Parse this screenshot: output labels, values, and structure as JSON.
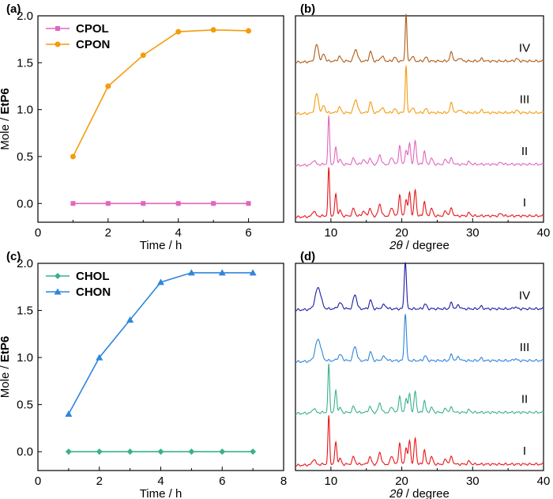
{
  "chart_data": [
    {
      "type": "line",
      "panel_label": "(a)",
      "xlabel": "Time / h",
      "ylabel_plain": "Mole / ",
      "ylabel_bold": "EtP6",
      "xlim": [
        0,
        7
      ],
      "ylim": [
        -0.2,
        2.0
      ],
      "xticks": [
        0,
        2,
        4,
        6
      ],
      "yticks": [
        0.0,
        0.5,
        1.0,
        1.5,
        2.0
      ],
      "ytick_labels": [
        "0.0",
        "0.5",
        "1.0",
        "1.5",
        "2.0"
      ],
      "legend_position": "top-left",
      "series": [
        {
          "name": "CPOL",
          "color": "#e066c0",
          "marker": "square",
          "x": [
            1,
            2,
            3,
            4,
            5,
            6
          ],
          "values": [
            0,
            0,
            0,
            0,
            0,
            0
          ]
        },
        {
          "name": "CPON",
          "color": "#f59b0c",
          "marker": "circle",
          "x": [
            1,
            2,
            3,
            4,
            5,
            6
          ],
          "values": [
            0.5,
            1.25,
            1.58,
            1.83,
            1.85,
            1.84
          ]
        }
      ]
    },
    {
      "type": "line",
      "panel_label": "(b)",
      "xlabel_italic": "2θ",
      "xlabel_rest": " / degree",
      "xlim": [
        5,
        40
      ],
      "xticks": [
        10,
        20,
        30,
        40
      ],
      "traces": [
        {
          "label": "IV",
          "color": "#b05a12",
          "peaks": [
            [
              8.0,
              0.35,
              0.25
            ],
            [
              9.0,
              0.15,
              0.2
            ],
            [
              11.2,
              0.1,
              0.2
            ],
            [
              13.5,
              0.25,
              0.25
            ],
            [
              15.6,
              0.2,
              0.2
            ],
            [
              17.2,
              0.1,
              0.25
            ],
            [
              19.0,
              0.08,
              0.2
            ],
            [
              20.6,
              1.0,
              0.12
            ],
            [
              21.5,
              0.1,
              0.2
            ],
            [
              23.4,
              0.08,
              0.2
            ],
            [
              27.0,
              0.18,
              0.2
            ],
            [
              28.2,
              0.07,
              0.2
            ],
            [
              31.3,
              0.05,
              0.2
            ],
            [
              36.2,
              0.05,
              0.2
            ]
          ]
        },
        {
          "label": "III",
          "color": "#f59b0c",
          "peaks": [
            [
              8.0,
              0.4,
              0.25
            ],
            [
              9.0,
              0.15,
              0.2
            ],
            [
              11.2,
              0.12,
              0.2
            ],
            [
              13.5,
              0.28,
              0.25
            ],
            [
              15.6,
              0.22,
              0.2
            ],
            [
              17.2,
              0.1,
              0.25
            ],
            [
              19.0,
              0.08,
              0.2
            ],
            [
              20.6,
              1.0,
              0.12
            ],
            [
              21.5,
              0.1,
              0.2
            ],
            [
              23.4,
              0.08,
              0.2
            ],
            [
              27.0,
              0.2,
              0.2
            ],
            [
              28.2,
              0.07,
              0.2
            ],
            [
              31.3,
              0.05,
              0.2
            ],
            [
              36.2,
              0.05,
              0.2
            ]
          ]
        },
        {
          "label": "II",
          "color": "#e066c0",
          "peaks": [
            [
              7.6,
              0.1,
              0.2
            ],
            [
              9.7,
              1.0,
              0.12
            ],
            [
              10.7,
              0.35,
              0.15
            ],
            [
              11.3,
              0.1,
              0.15
            ],
            [
              13.2,
              0.12,
              0.2
            ],
            [
              14.6,
              0.1,
              0.2
            ],
            [
              15.5,
              0.12,
              0.2
            ],
            [
              16.9,
              0.2,
              0.2
            ],
            [
              18.6,
              0.15,
              0.2
            ],
            [
              19.7,
              0.4,
              0.15
            ],
            [
              20.6,
              0.3,
              0.15
            ],
            [
              21.1,
              0.45,
              0.15
            ],
            [
              21.9,
              0.5,
              0.15
            ],
            [
              23.2,
              0.28,
              0.15
            ],
            [
              24.2,
              0.12,
              0.2
            ],
            [
              26.2,
              0.1,
              0.2
            ],
            [
              27.0,
              0.12,
              0.2
            ],
            [
              29.5,
              0.05,
              0.2
            ],
            [
              34.0,
              0.04,
              0.2
            ]
          ]
        },
        {
          "label": "I",
          "color": "#e8151a",
          "peaks": [
            [
              7.6,
              0.12,
              0.2
            ],
            [
              9.7,
              1.0,
              0.12
            ],
            [
              10.7,
              0.45,
              0.15
            ],
            [
              11.3,
              0.12,
              0.15
            ],
            [
              13.2,
              0.15,
              0.2
            ],
            [
              14.6,
              0.1,
              0.2
            ],
            [
              15.5,
              0.15,
              0.2
            ],
            [
              16.9,
              0.25,
              0.2
            ],
            [
              18.6,
              0.18,
              0.2
            ],
            [
              19.7,
              0.45,
              0.15
            ],
            [
              20.6,
              0.35,
              0.15
            ],
            [
              21.1,
              0.5,
              0.15
            ],
            [
              21.9,
              0.55,
              0.15
            ],
            [
              23.2,
              0.3,
              0.15
            ],
            [
              24.2,
              0.15,
              0.2
            ],
            [
              26.2,
              0.1,
              0.2
            ],
            [
              27.0,
              0.15,
              0.2
            ],
            [
              29.5,
              0.06,
              0.2
            ],
            [
              34.0,
              0.05,
              0.2
            ]
          ]
        }
      ]
    },
    {
      "type": "line",
      "panel_label": "(c)",
      "xlabel": "Time / h",
      "ylabel_plain": "Mole / ",
      "ylabel_bold": "EtP6",
      "xlim": [
        0,
        8
      ],
      "ylim": [
        -0.2,
        2.0
      ],
      "xticks": [
        0,
        2,
        4,
        6,
        8
      ],
      "yticks": [
        0.0,
        0.5,
        1.0,
        1.5,
        2.0
      ],
      "ytick_labels": [
        "0.0",
        "0.5",
        "1.0",
        "1.5",
        "2.0"
      ],
      "legend_position": "top-left",
      "series": [
        {
          "name": "CHOL",
          "color": "#3bb08f",
          "marker": "diamond",
          "x": [
            1,
            2,
            3,
            4,
            5,
            6,
            7
          ],
          "values": [
            0,
            0,
            0,
            0,
            0,
            0,
            0
          ]
        },
        {
          "name": "CHON",
          "color": "#2f86dd",
          "marker": "triangle",
          "x": [
            1,
            2,
            3,
            4,
            5,
            6,
            7
          ],
          "values": [
            0.4,
            1.0,
            1.4,
            1.8,
            1.9,
            1.9,
            1.9
          ]
        }
      ]
    },
    {
      "type": "line",
      "panel_label": "(d)",
      "xlabel_italic": "2θ",
      "xlabel_rest": " / degree",
      "xlim": [
        5,
        40
      ],
      "xticks": [
        10,
        20,
        30,
        40
      ],
      "traces": [
        {
          "label": "IV",
          "color": "#1c1ca6",
          "peaks": [
            [
              8.2,
              0.45,
              0.4
            ],
            [
              11.3,
              0.12,
              0.3
            ],
            [
              13.4,
              0.3,
              0.25
            ],
            [
              15.6,
              0.18,
              0.2
            ],
            [
              17.5,
              0.08,
              0.3
            ],
            [
              20.5,
              1.0,
              0.15
            ],
            [
              23.3,
              0.1,
              0.2
            ],
            [
              27.0,
              0.12,
              0.2
            ],
            [
              28.0,
              0.08,
              0.2
            ],
            [
              31.2,
              0.05,
              0.2
            ],
            [
              36.0,
              0.04,
              0.2
            ]
          ]
        },
        {
          "label": "III",
          "color": "#2f86dd",
          "peaks": [
            [
              8.2,
              0.45,
              0.4
            ],
            [
              11.3,
              0.12,
              0.3
            ],
            [
              13.4,
              0.3,
              0.25
            ],
            [
              15.6,
              0.18,
              0.2
            ],
            [
              17.5,
              0.08,
              0.3
            ],
            [
              20.5,
              1.0,
              0.15
            ],
            [
              23.3,
              0.1,
              0.2
            ],
            [
              27.0,
              0.12,
              0.2
            ],
            [
              28.0,
              0.08,
              0.2
            ],
            [
              31.2,
              0.05,
              0.2
            ],
            [
              36.0,
              0.04,
              0.2
            ]
          ]
        },
        {
          "label": "II",
          "color": "#3bb08f",
          "peaks": [
            [
              7.6,
              0.1,
              0.2
            ],
            [
              9.7,
              1.0,
              0.12
            ],
            [
              10.7,
              0.45,
              0.15
            ],
            [
              11.3,
              0.1,
              0.15
            ],
            [
              13.2,
              0.12,
              0.2
            ],
            [
              15.5,
              0.12,
              0.2
            ],
            [
              16.9,
              0.2,
              0.2
            ],
            [
              18.6,
              0.12,
              0.2
            ],
            [
              19.7,
              0.35,
              0.15
            ],
            [
              20.6,
              0.3,
              0.15
            ],
            [
              21.1,
              0.4,
              0.15
            ],
            [
              21.9,
              0.45,
              0.15
            ],
            [
              23.2,
              0.25,
              0.15
            ],
            [
              24.2,
              0.1,
              0.2
            ],
            [
              26.2,
              0.08,
              0.2
            ],
            [
              27.0,
              0.1,
              0.2
            ],
            [
              29.5,
              0.05,
              0.2
            ]
          ]
        },
        {
          "label": "I",
          "color": "#e8151a",
          "peaks": [
            [
              7.6,
              0.12,
              0.2
            ],
            [
              9.7,
              1.0,
              0.12
            ],
            [
              10.7,
              0.45,
              0.15
            ],
            [
              11.3,
              0.12,
              0.15
            ],
            [
              13.2,
              0.15,
              0.2
            ],
            [
              15.5,
              0.15,
              0.2
            ],
            [
              16.9,
              0.25,
              0.2
            ],
            [
              18.6,
              0.18,
              0.2
            ],
            [
              19.7,
              0.45,
              0.15
            ],
            [
              20.6,
              0.35,
              0.15
            ],
            [
              21.1,
              0.5,
              0.15
            ],
            [
              21.9,
              0.55,
              0.15
            ],
            [
              23.2,
              0.3,
              0.15
            ],
            [
              24.2,
              0.15,
              0.2
            ],
            [
              26.2,
              0.1,
              0.2
            ],
            [
              27.0,
              0.15,
              0.2
            ],
            [
              29.5,
              0.06,
              0.2
            ]
          ]
        }
      ]
    }
  ]
}
